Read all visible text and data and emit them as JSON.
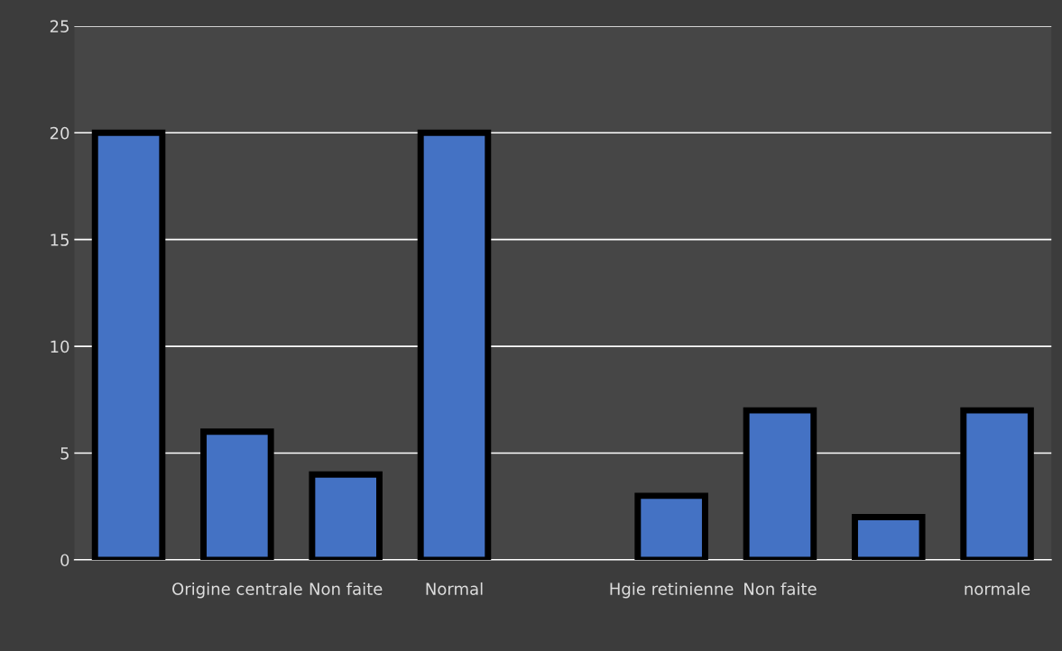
{
  "chart_data": {
    "type": "bar",
    "categories": [
      null,
      "Origine centrale",
      "Non faite",
      "Normal",
      null,
      "Hgie retinienne",
      "Non faite",
      null,
      "normale"
    ],
    "values": [
      20,
      6,
      4,
      20,
      null,
      3,
      7,
      2,
      7
    ],
    "color": "#4472c4",
    "ylim": [
      0,
      25
    ],
    "yticks": [
      0,
      5,
      10,
      15,
      20,
      25
    ],
    "grid": "y",
    "legend": false
  }
}
